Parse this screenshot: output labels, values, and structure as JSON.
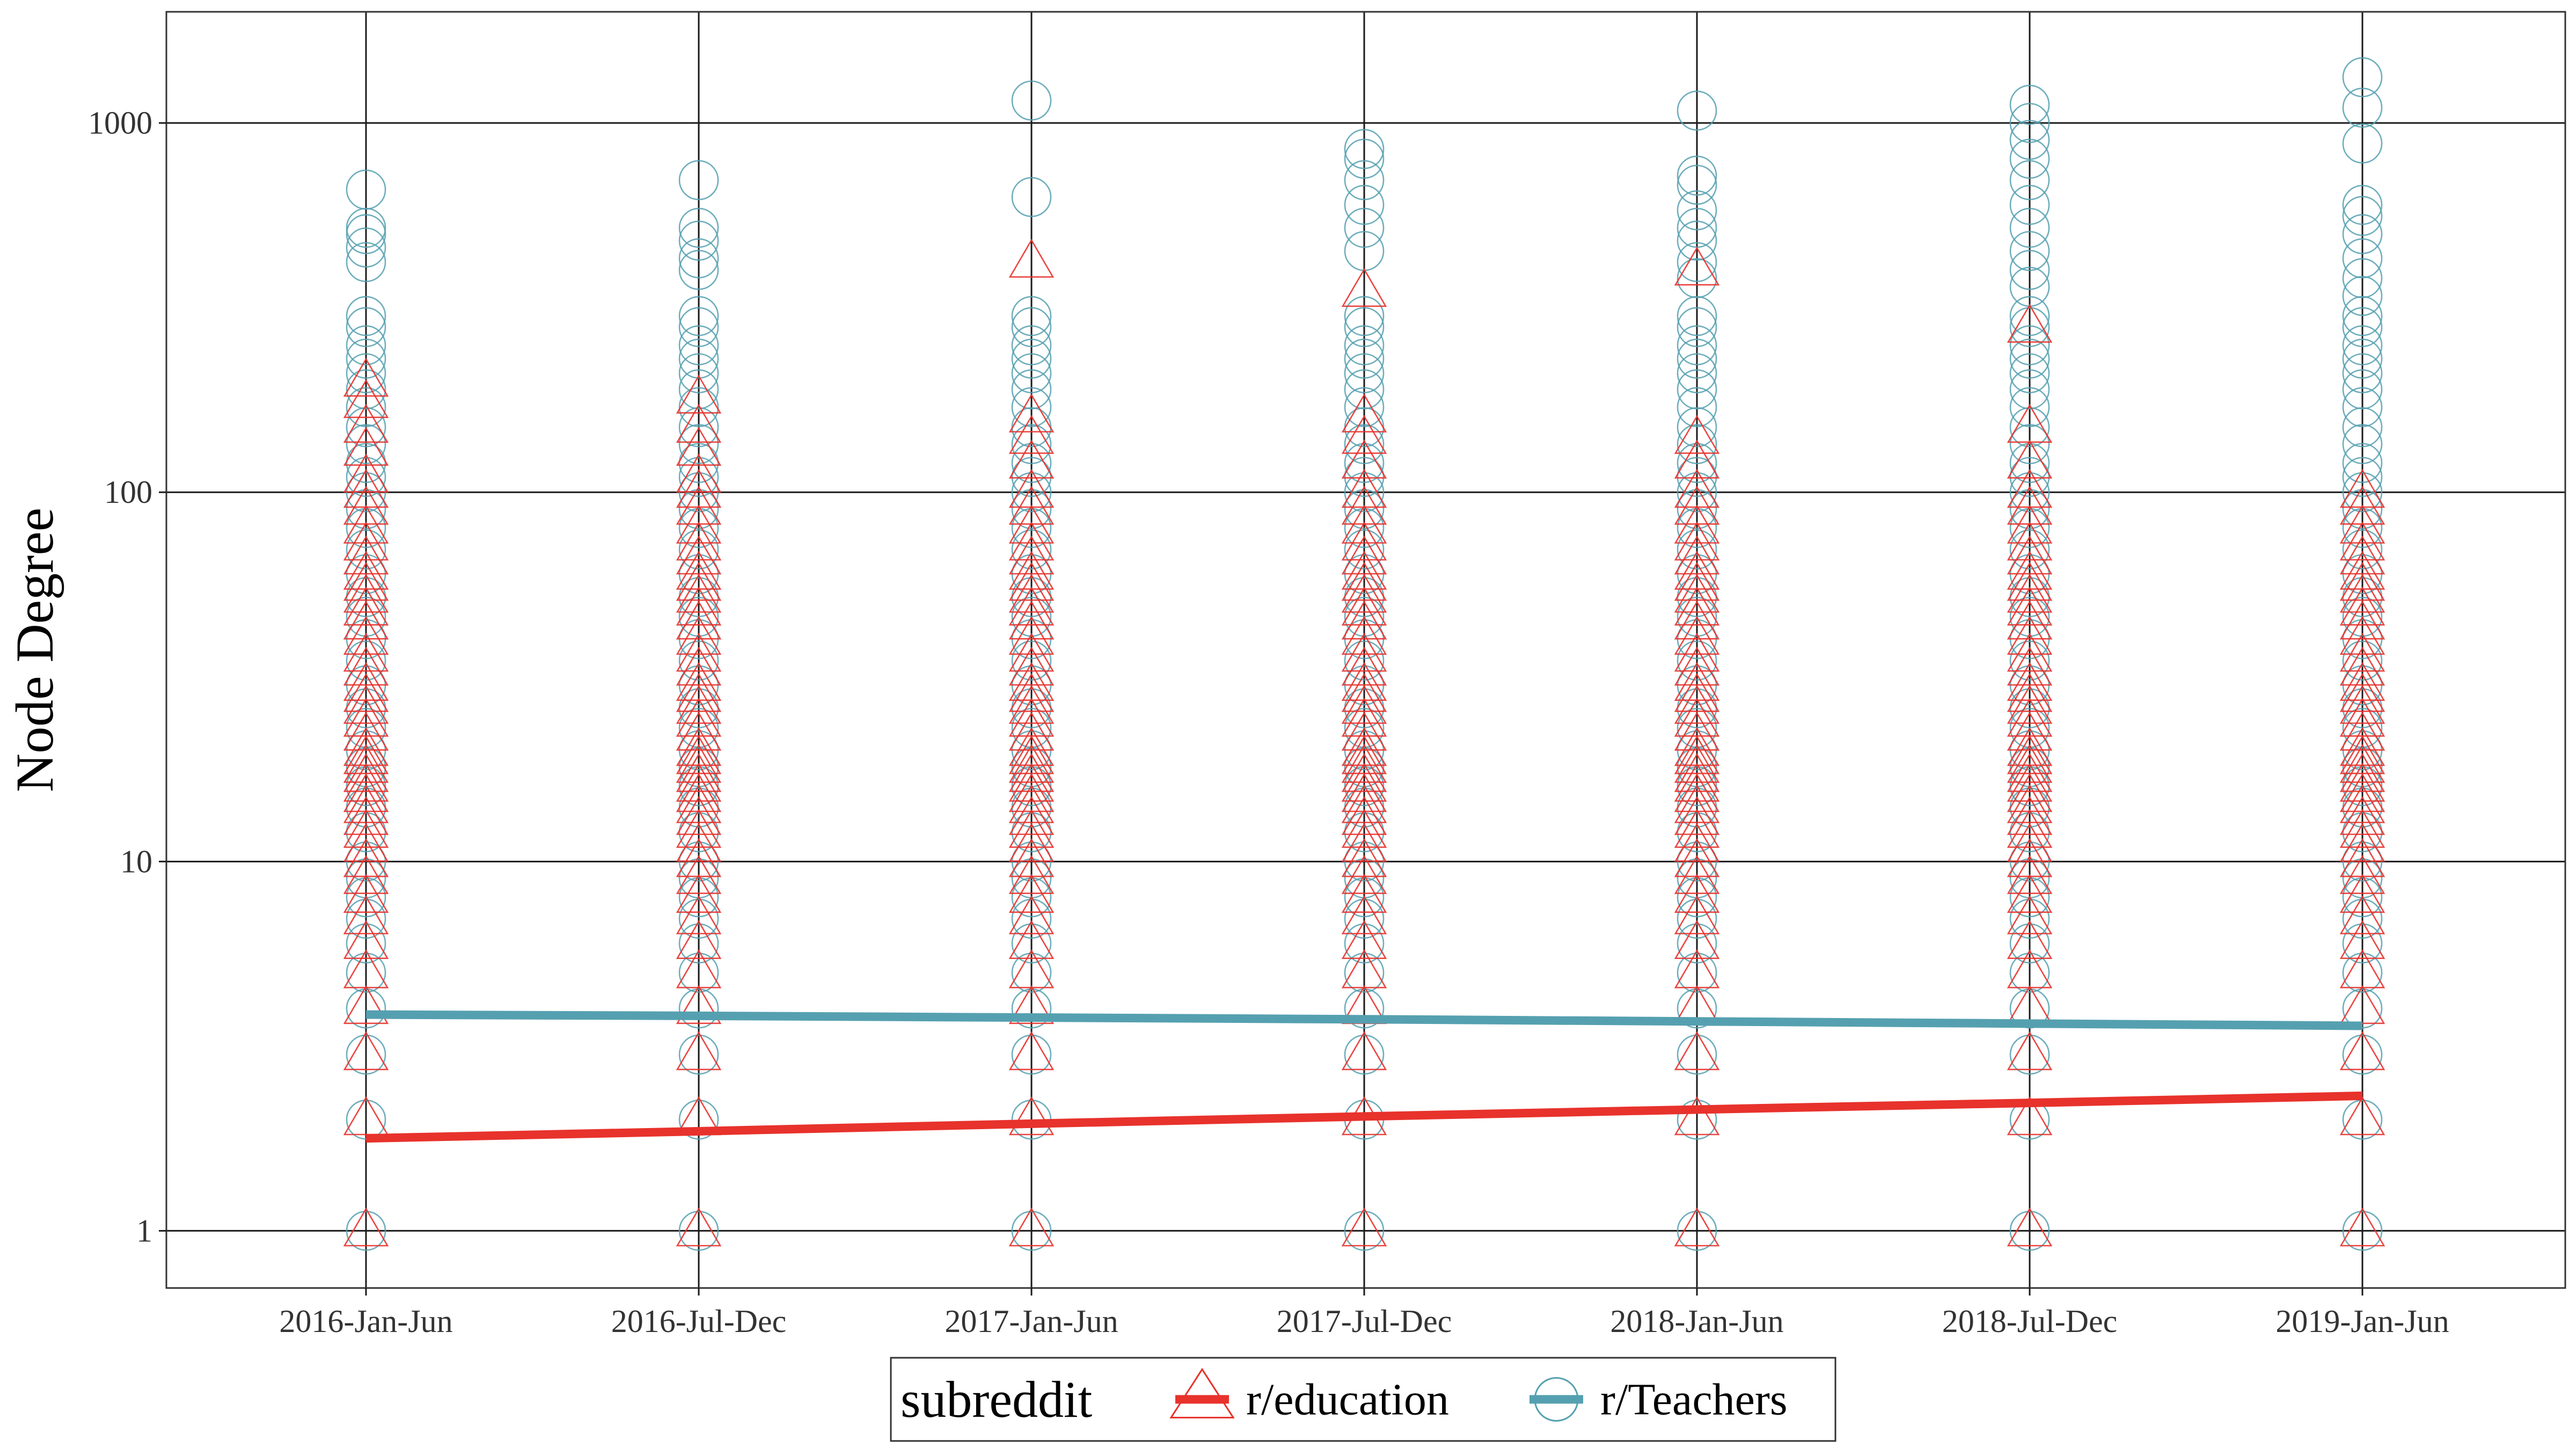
{
  "colors": {
    "education": "#e8322c",
    "teachers": "#55a0b0",
    "grid": "#1a1a1a",
    "panel_border": "#333333"
  },
  "legend": {
    "title": "subreddit",
    "items": [
      {
        "label": "r/education",
        "color": "#e8322c",
        "shape": "triangle"
      },
      {
        "label": "r/Teachers",
        "color": "#55a0b0",
        "shape": "circle"
      }
    ]
  },
  "chart_data": {
    "type": "scatter",
    "title": "",
    "xlabel": "",
    "ylabel": "Node Degree",
    "y_scale": "log10",
    "ylim": [
      0.7,
      2000
    ],
    "yticks": [
      1,
      10,
      100,
      1000
    ],
    "ytick_labels": [
      "1",
      "10",
      "100",
      "1000"
    ],
    "categories": [
      "2016-Jan-Jun",
      "2016-Jul-Dec",
      "2017-Jan-Jun",
      "2017-Jul-Dec",
      "2018-Jan-Jun",
      "2018-Jul-Dec",
      "2019-Jan-Jun"
    ],
    "grid": true,
    "legend_position": "bottom",
    "series": [
      {
        "name": "r/Teachers",
        "marker": "circle",
        "color": "#55a0b0",
        "points_by_category": [
          [
            1,
            2,
            3,
            4,
            5,
            6,
            7,
            8,
            9,
            10,
            12,
            14,
            16,
            18,
            20,
            23,
            26,
            30,
            35,
            40,
            46,
            52,
            60,
            70,
            80,
            90,
            100,
            110,
            120,
            135,
            150,
            170,
            190,
            210,
            230,
            250,
            280,
            300,
            420,
            460,
            500,
            520,
            660
          ],
          [
            1,
            2,
            3,
            4,
            5,
            6,
            7,
            8,
            9,
            10,
            12,
            14,
            16,
            18,
            20,
            23,
            26,
            30,
            35,
            40,
            46,
            52,
            60,
            70,
            80,
            90,
            100,
            110,
            120,
            135,
            150,
            170,
            190,
            210,
            230,
            250,
            280,
            300,
            400,
            430,
            480,
            520,
            700
          ],
          [
            1,
            2,
            3,
            4,
            5,
            6,
            7,
            8,
            9,
            10,
            12,
            14,
            16,
            18,
            20,
            23,
            26,
            30,
            35,
            40,
            46,
            52,
            60,
            70,
            80,
            90,
            100,
            110,
            120,
            135,
            150,
            170,
            190,
            210,
            230,
            250,
            280,
            300,
            630,
            1150
          ],
          [
            1,
            2,
            3,
            4,
            5,
            6,
            7,
            8,
            9,
            10,
            12,
            14,
            16,
            18,
            20,
            23,
            26,
            30,
            35,
            40,
            46,
            52,
            60,
            70,
            80,
            90,
            100,
            110,
            120,
            135,
            150,
            170,
            190,
            210,
            230,
            250,
            280,
            300,
            450,
            520,
            600,
            700,
            800,
            850
          ],
          [
            1,
            2,
            3,
            4,
            5,
            6,
            7,
            8,
            9,
            10,
            12,
            14,
            16,
            18,
            20,
            23,
            26,
            30,
            35,
            40,
            46,
            52,
            60,
            70,
            80,
            90,
            100,
            110,
            120,
            135,
            150,
            170,
            190,
            210,
            230,
            250,
            280,
            300,
            380,
            420,
            480,
            520,
            580,
            680,
            720,
            1080
          ],
          [
            1,
            2,
            3,
            4,
            5,
            6,
            7,
            8,
            9,
            10,
            12,
            14,
            16,
            18,
            20,
            23,
            26,
            30,
            35,
            40,
            46,
            52,
            60,
            70,
            80,
            90,
            100,
            110,
            120,
            135,
            150,
            170,
            190,
            210,
            230,
            250,
            280,
            300,
            360,
            400,
            450,
            520,
            600,
            700,
            800,
            900,
            1000,
            1120
          ],
          [
            1,
            2,
            3,
            4,
            5,
            6,
            7,
            8,
            9,
            10,
            12,
            14,
            16,
            18,
            20,
            23,
            26,
            30,
            35,
            40,
            46,
            52,
            60,
            70,
            80,
            90,
            100,
            110,
            120,
            135,
            150,
            170,
            190,
            210,
            230,
            250,
            280,
            300,
            340,
            380,
            430,
            500,
            560,
            600,
            880,
            1100,
            1330
          ]
        ],
        "trend": [
          3.85,
          3.82,
          3.78,
          3.74,
          3.69,
          3.64,
          3.59
        ]
      },
      {
        "name": "r/education",
        "marker": "triangle",
        "color": "#e8322c",
        "points_by_category": [
          [
            1,
            2,
            3,
            4,
            5,
            6,
            7,
            8,
            9,
            10,
            11,
            12,
            13,
            14,
            15,
            16,
            17,
            18,
            19,
            20,
            22,
            24,
            26,
            28,
            30,
            33,
            36,
            40,
            44,
            48,
            52,
            56,
            60,
            66,
            72,
            80,
            90,
            100,
            110,
            130,
            150,
            175,
            200
          ],
          [
            1,
            2,
            3,
            4,
            5,
            6,
            7,
            8,
            9,
            10,
            11,
            12,
            13,
            14,
            15,
            16,
            17,
            18,
            19,
            20,
            22,
            24,
            26,
            28,
            30,
            33,
            36,
            40,
            44,
            48,
            52,
            56,
            60,
            66,
            72,
            80,
            90,
            100,
            110,
            130,
            150,
            180
          ],
          [
            1,
            2,
            3,
            4,
            5,
            6,
            7,
            8,
            9,
            10,
            11,
            12,
            13,
            14,
            15,
            16,
            17,
            18,
            19,
            20,
            22,
            24,
            26,
            28,
            30,
            33,
            36,
            40,
            44,
            48,
            52,
            56,
            60,
            66,
            72,
            80,
            90,
            100,
            120,
            140,
            160,
            420
          ],
          [
            1,
            2,
            3,
            4,
            5,
            6,
            7,
            8,
            9,
            10,
            11,
            12,
            13,
            14,
            15,
            16,
            17,
            18,
            19,
            20,
            22,
            24,
            26,
            28,
            30,
            33,
            36,
            40,
            44,
            48,
            52,
            56,
            60,
            66,
            72,
            80,
            90,
            100,
            120,
            140,
            160,
            350
          ],
          [
            1,
            2,
            3,
            4,
            5,
            6,
            7,
            8,
            9,
            10,
            11,
            12,
            13,
            14,
            15,
            16,
            17,
            18,
            19,
            20,
            22,
            24,
            26,
            28,
            30,
            33,
            36,
            40,
            44,
            48,
            52,
            56,
            60,
            66,
            72,
            80,
            90,
            100,
            120,
            140,
            400
          ],
          [
            1,
            2,
            3,
            4,
            5,
            6,
            7,
            8,
            9,
            10,
            11,
            12,
            13,
            14,
            15,
            16,
            17,
            18,
            19,
            20,
            22,
            24,
            26,
            28,
            30,
            33,
            36,
            40,
            44,
            48,
            52,
            56,
            60,
            66,
            72,
            80,
            90,
            100,
            120,
            150,
            280
          ],
          [
            1,
            2,
            3,
            4,
            5,
            6,
            7,
            8,
            9,
            10,
            11,
            12,
            13,
            14,
            15,
            16,
            17,
            18,
            19,
            20,
            22,
            24,
            26,
            28,
            30,
            33,
            36,
            40,
            44,
            48,
            52,
            56,
            60,
            66,
            72,
            80,
            90,
            100
          ]
        ],
        "trend": [
          1.78,
          1.86,
          1.95,
          2.04,
          2.13,
          2.22,
          2.32
        ]
      }
    ]
  }
}
